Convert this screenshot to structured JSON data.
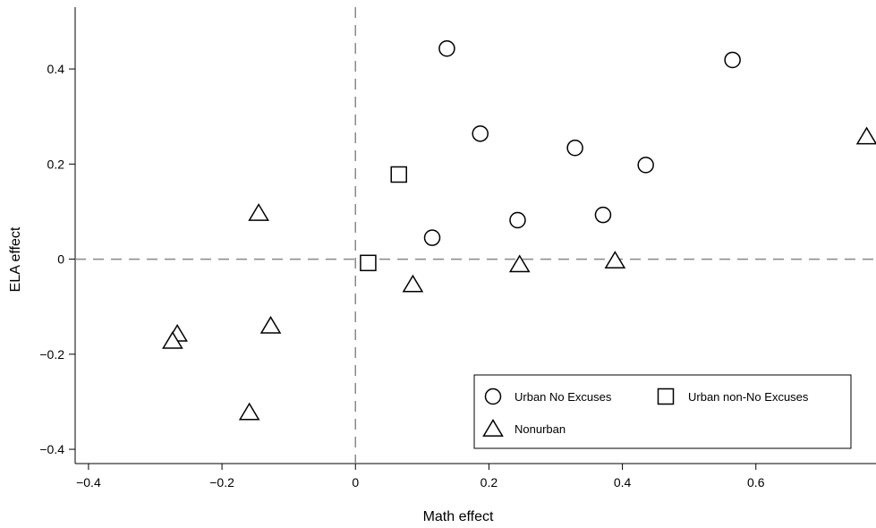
{
  "chart_data": {
    "type": "scatter",
    "xlabel": "Math effect",
    "ylabel": "ELA effect",
    "xlim": [
      -0.42,
      0.78
    ],
    "ylim": [
      -0.43,
      0.53
    ],
    "x_ticks": [
      -0.4,
      -0.2,
      0,
      0.2,
      0.4,
      0.6
    ],
    "x_tick_labels": [
      "−0.4",
      "−0.2",
      "0",
      "0.2",
      "0.4",
      "0.6"
    ],
    "y_ticks": [
      -0.4,
      -0.2,
      0,
      0.2,
      0.4
    ],
    "y_tick_labels": [
      "−0.4",
      "−0.2",
      "0",
      "0.2",
      "0.4"
    ],
    "reference_lines": {
      "x": 0,
      "y": 0,
      "style": "dashed",
      "color": "#888888"
    },
    "grid": false,
    "legend_position": "bottom-right",
    "series": [
      {
        "name": "Urban No Excuses",
        "marker": "circle",
        "points": [
          {
            "x": 0.137,
            "y": 0.443
          },
          {
            "x": 0.187,
            "y": 0.264
          },
          {
            "x": 0.329,
            "y": 0.234
          },
          {
            "x": 0.565,
            "y": 0.419
          },
          {
            "x": 0.435,
            "y": 0.198
          },
          {
            "x": 0.371,
            "y": 0.093
          },
          {
            "x": 0.243,
            "y": 0.082
          },
          {
            "x": 0.115,
            "y": 0.045
          }
        ]
      },
      {
        "name": "Urban non-No Excuses",
        "marker": "square",
        "points": [
          {
            "x": 0.065,
            "y": 0.178
          },
          {
            "x": 0.019,
            "y": -0.008
          }
        ]
      },
      {
        "name": "Nonurban",
        "marker": "triangle",
        "points": [
          {
            "x": 0.766,
            "y": 0.258
          },
          {
            "x": -0.145,
            "y": 0.097
          },
          {
            "x": 0.086,
            "y": -0.053
          },
          {
            "x": 0.246,
            "y": -0.011
          },
          {
            "x": 0.389,
            "y": -0.003
          },
          {
            "x": -0.127,
            "y": -0.14
          },
          {
            "x": -0.267,
            "y": -0.157
          },
          {
            "x": -0.274,
            "y": -0.172
          },
          {
            "x": -0.159,
            "y": -0.322
          }
        ]
      }
    ]
  }
}
